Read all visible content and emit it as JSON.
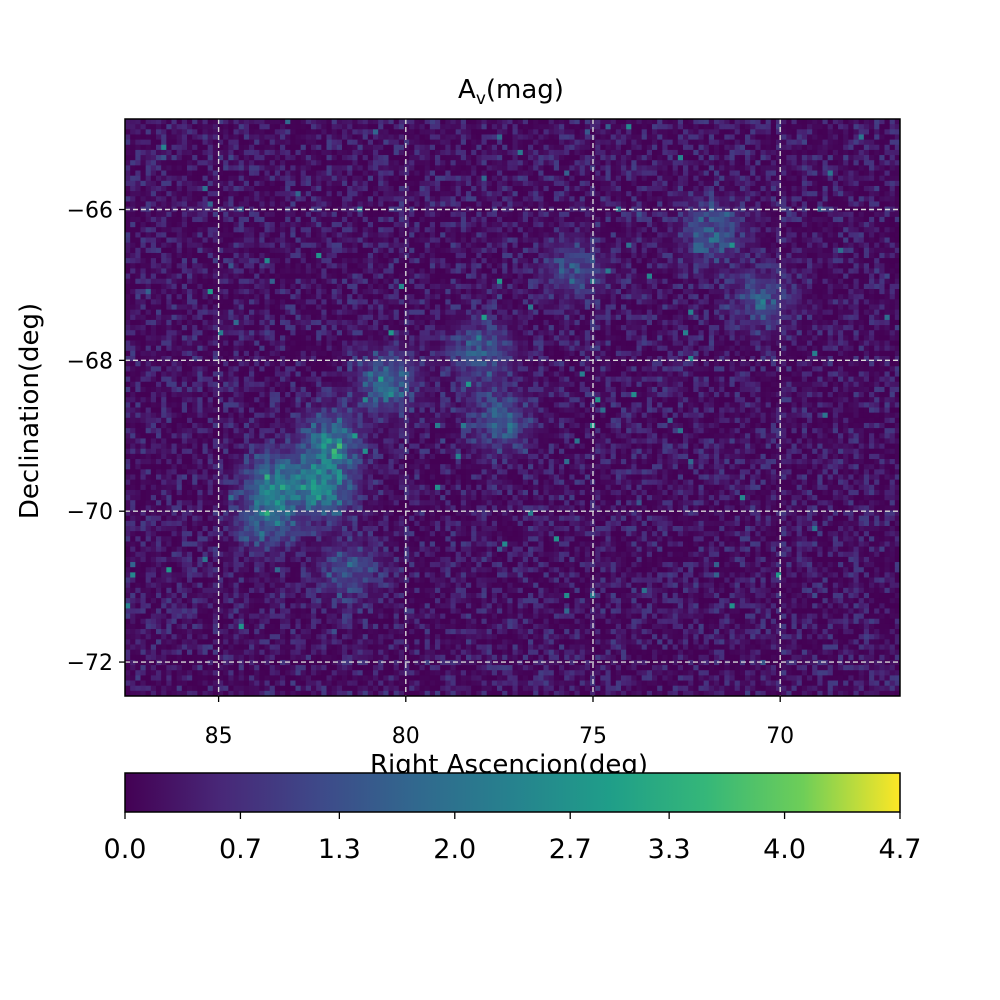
{
  "chart_data": {
    "type": "heatmap",
    "title": "A",
    "title_sub": "v",
    "title_rest": "(mag)",
    "xlabel": "Right Ascencion(deg)",
    "ylabel": "Declination(deg)",
    "xlim": [
      87.5,
      66.8
    ],
    "ylim": [
      -72.45,
      -64.8
    ],
    "x_ticks": [
      85,
      80,
      75,
      70
    ],
    "x_tick_labels": [
      "85",
      "80",
      "75",
      "70"
    ],
    "y_ticks": [
      -66,
      -68,
      -70,
      -72
    ],
    "y_tick_labels": [
      "−66",
      "−68",
      "−70",
      "−72"
    ],
    "grid": true,
    "grid_style": "dashed",
    "colormap": "viridis",
    "colorbar": {
      "orientation": "horizontal",
      "placement": "bottom",
      "range": [
        0.0,
        4.7
      ],
      "ticks": [
        0.0,
        0.7,
        1.3,
        2.0,
        2.7,
        3.3,
        4.0,
        4.7
      ],
      "tick_labels": [
        "0.0",
        "0.7",
        "1.3",
        "2.0",
        "2.7",
        "3.3",
        "4.0",
        "4.7"
      ]
    },
    "background_value_range": [
      0.0,
      1.0
    ],
    "high_extinction_regions": [
      {
        "ra": 78.0,
        "dec": -67.9,
        "peak_av": 2.0
      },
      {
        "ra": 80.5,
        "dec": -68.3,
        "peak_av": 2.4
      },
      {
        "ra": 82.0,
        "dec": -69.1,
        "peak_av": 3.0
      },
      {
        "ra": 82.2,
        "dec": -69.7,
        "peak_av": 3.2
      },
      {
        "ra": 83.5,
        "dec": -69.6,
        "peak_av": 2.6
      },
      {
        "ra": 83.7,
        "dec": -70.1,
        "peak_av": 2.2
      },
      {
        "ra": 77.5,
        "dec": -68.8,
        "peak_av": 1.8
      },
      {
        "ra": 81.5,
        "dec": -70.8,
        "peak_av": 1.5
      },
      {
        "ra": 71.8,
        "dec": -66.3,
        "peak_av": 1.9
      },
      {
        "ra": 70.5,
        "dec": -67.2,
        "peak_av": 1.5
      },
      {
        "ra": 75.5,
        "dec": -66.8,
        "peak_av": 1.3
      }
    ]
  }
}
